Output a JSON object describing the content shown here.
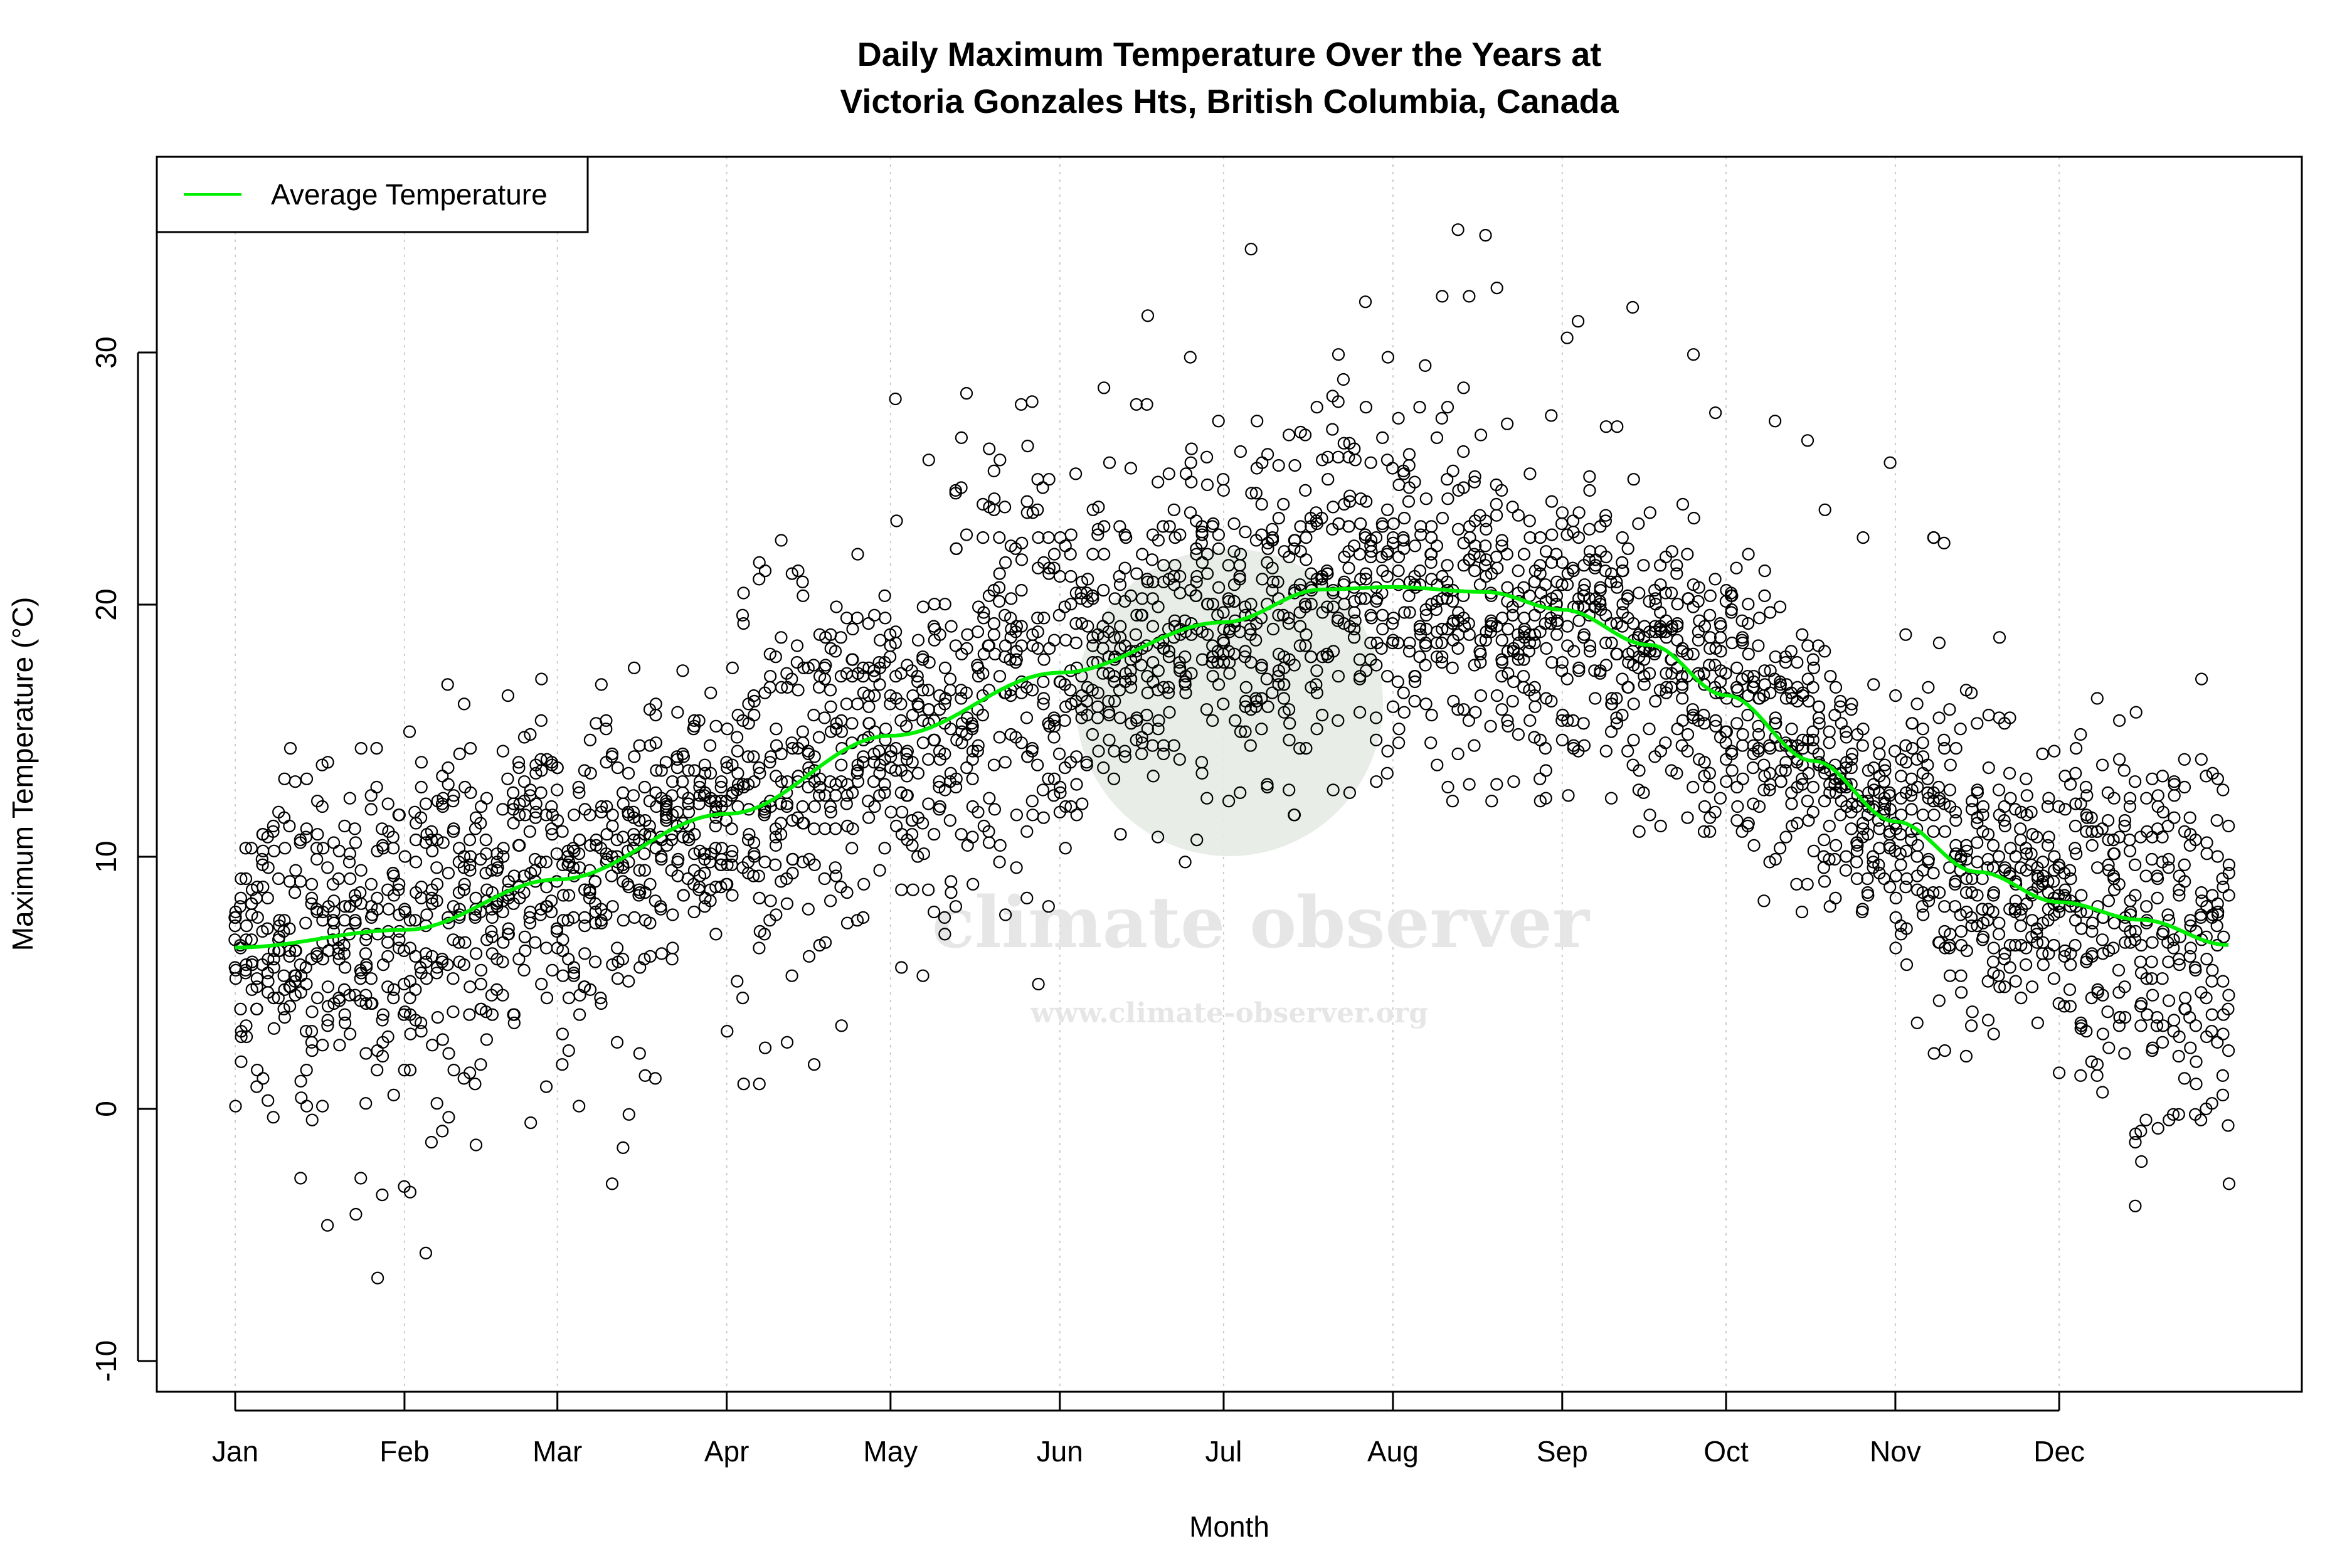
{
  "chart_data": {
    "type": "scatter",
    "title_line1": "Daily Maximum Temperature Over the Years at",
    "title_line2": "Victoria Gonzales Hts, British Columbia, Canada",
    "xlabel": "Month",
    "ylabel": "Maximum Temperature (°C)",
    "x_tick_labels": [
      "Jan",
      "Feb",
      "Mar",
      "Apr",
      "May",
      "Jun",
      "Jul",
      "Aug",
      "Sep",
      "Oct",
      "Nov",
      "Dec"
    ],
    "x_tick_days": [
      1,
      32,
      60,
      91,
      121,
      152,
      182,
      213,
      244,
      274,
      305,
      335
    ],
    "y_ticks": [
      -10,
      0,
      10,
      20,
      30
    ],
    "ylim": [
      -11,
      38
    ],
    "xlim_days": [
      -5,
      384
    ],
    "grid": "vertical dotted at month ticks",
    "legend": {
      "placement": "top-left",
      "entries": [
        {
          "label": "Average Temperature",
          "color": "#00ee00"
        }
      ]
    },
    "average_temperature": {
      "name": "Average Temperature",
      "color": "#00ee00",
      "days": [
        1,
        32,
        60,
        91,
        121,
        152,
        182,
        200,
        213,
        230,
        244,
        260,
        274,
        290,
        305,
        320,
        335,
        350,
        366
      ],
      "values": [
        6.4,
        7.1,
        9.1,
        11.7,
        14.8,
        17.3,
        19.3,
        20.6,
        20.7,
        20.5,
        19.8,
        18.4,
        16.4,
        13.8,
        11.4,
        9.4,
        8.2,
        7.5,
        6.5
      ]
    },
    "daily_observations": {
      "marker": "open circle",
      "color": "#000000",
      "range_by_month": [
        {
          "month": "Jan",
          "min": -9.5,
          "max": 14.3
        },
        {
          "month": "Feb",
          "min": -7.2,
          "max": 17.1
        },
        {
          "month": "Mar",
          "min": -4.0,
          "max": 17.5
        },
        {
          "month": "Apr",
          "min": 1.0,
          "max": 23.6
        },
        {
          "month": "May",
          "min": 5.0,
          "max": 28.5
        },
        {
          "month": "Jun",
          "min": 8.9,
          "max": 31.6
        },
        {
          "month": "Jul",
          "min": 11.7,
          "max": 36.0
        },
        {
          "month": "Aug",
          "min": 12.2,
          "max": 35.4
        },
        {
          "month": "Sep",
          "min": 11.0,
          "max": 32.0
        },
        {
          "month": "Oct",
          "min": 7.8,
          "max": 28.2
        },
        {
          "month": "Nov",
          "min": 1.7,
          "max": 24.0
        },
        {
          "month": "Dec",
          "min": -6.5,
          "max": 17.2
        }
      ]
    }
  },
  "watermark": {
    "brand": "climate observer",
    "url": "www.climate-observer.org"
  }
}
